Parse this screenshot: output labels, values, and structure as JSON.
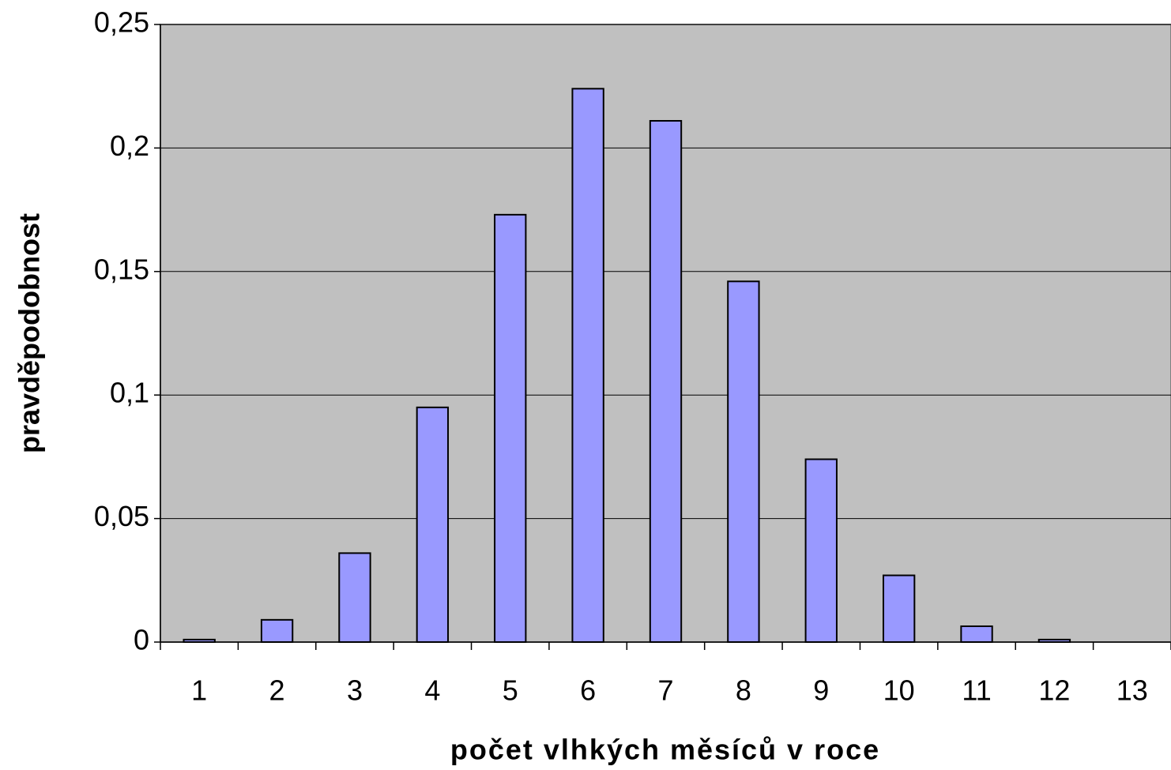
{
  "chart_data": {
    "type": "bar",
    "x_label": "počet vlhkých měsíců v roce",
    "y_label": "pravděpodobnost",
    "categories": [
      "1",
      "2",
      "3",
      "4",
      "5",
      "6",
      "7",
      "8",
      "9",
      "10",
      "11",
      "12",
      "13"
    ],
    "values": [
      0.001,
      0.009,
      0.036,
      0.095,
      0.173,
      0.224,
      0.211,
      0.146,
      0.074,
      0.027,
      0.0064,
      0.001,
      0
    ],
    "color": "#9999ff",
    "ylim": [
      0,
      0.25
    ],
    "yticks": [
      0,
      {
        "value": 0.05,
        "label": "0,05"
      },
      {
        "value": 0.1,
        "label": "0,1"
      },
      {
        "value": 0.15,
        "label": "0,15"
      },
      {
        "value": 0.2,
        "label": "0,2"
      },
      {
        "value": 0.25,
        "label": "0,25"
      }
    ],
    "grid": true
  }
}
